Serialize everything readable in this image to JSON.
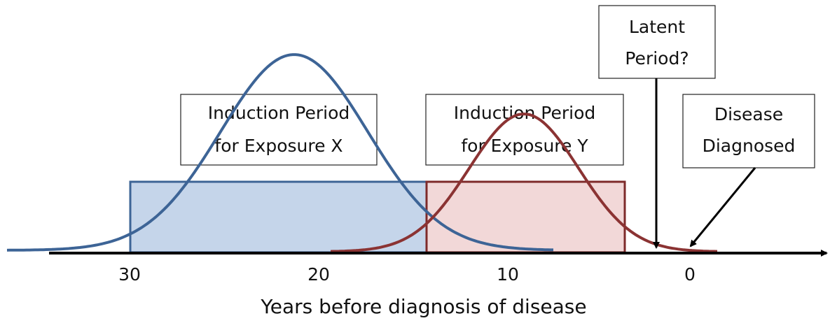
{
  "boxes": [
    {
      "lines": [
        "Induction Period",
        "for Exposure X"
      ]
    },
    {
      "lines": [
        "Induction Period",
        "for Exposure Y"
      ]
    },
    {
      "lines": [
        "Latent",
        "Period?"
      ]
    },
    {
      "lines": [
        "Disease",
        "Diagnosed"
      ]
    }
  ],
  "axis": {
    "ticks": [
      30,
      20,
      10,
      0
    ],
    "label": "Years before diagnosis of disease"
  }
}
